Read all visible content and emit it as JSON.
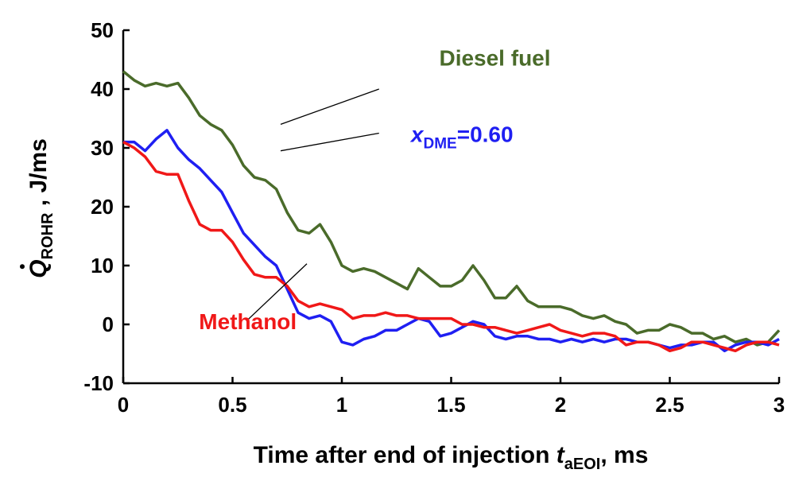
{
  "chart_data": {
    "type": "line",
    "title": "",
    "xlim": [
      0,
      3
    ],
    "ylim": [
      -10,
      50
    ],
    "x_ticks": [
      0,
      0.5,
      1,
      1.5,
      2,
      2.5,
      3
    ],
    "x_tick_labels": [
      "0",
      "0.5",
      "1",
      "1.5",
      "2",
      "2.5",
      "3"
    ],
    "y_ticks": [
      -10,
      0,
      10,
      20,
      30,
      40,
      50
    ],
    "y_tick_labels": [
      "-10",
      "0",
      "10",
      "20",
      "30",
      "40",
      "50"
    ],
    "xlabel": {
      "text": "Time after end of injection ",
      "var": "t",
      "sub": "aEOI",
      "unit": ", ms"
    },
    "ylabel": {
      "var": "Q",
      "sub": "ROHR",
      "unit": " , J/ms"
    },
    "grid": false,
    "legend": "none",
    "series": [
      {
        "name": "Diesel fuel",
        "color": "#4a6b2a",
        "points": [
          [
            0.0,
            43.0
          ],
          [
            0.05,
            41.5
          ],
          [
            0.1,
            40.5
          ],
          [
            0.15,
            41.0
          ],
          [
            0.2,
            40.5
          ],
          [
            0.25,
            41.0
          ],
          [
            0.3,
            38.5
          ],
          [
            0.35,
            35.5
          ],
          [
            0.4,
            34.0
          ],
          [
            0.45,
            33.0
          ],
          [
            0.5,
            30.5
          ],
          [
            0.55,
            27.0
          ],
          [
            0.6,
            25.0
          ],
          [
            0.65,
            24.5
          ],
          [
            0.7,
            23.0
          ],
          [
            0.75,
            19.0
          ],
          [
            0.8,
            16.0
          ],
          [
            0.85,
            15.5
          ],
          [
            0.9,
            17.0
          ],
          [
            0.95,
            14.0
          ],
          [
            1.0,
            10.0
          ],
          [
            1.05,
            9.0
          ],
          [
            1.1,
            9.5
          ],
          [
            1.15,
            9.0
          ],
          [
            1.2,
            8.0
          ],
          [
            1.25,
            7.0
          ],
          [
            1.3,
            6.0
          ],
          [
            1.35,
            9.5
          ],
          [
            1.4,
            8.0
          ],
          [
            1.45,
            6.5
          ],
          [
            1.5,
            6.5
          ],
          [
            1.55,
            7.5
          ],
          [
            1.6,
            10.0
          ],
          [
            1.65,
            7.5
          ],
          [
            1.7,
            4.5
          ],
          [
            1.75,
            4.5
          ],
          [
            1.8,
            6.5
          ],
          [
            1.85,
            4.0
          ],
          [
            1.9,
            3.0
          ],
          [
            1.95,
            3.0
          ],
          [
            2.0,
            3.0
          ],
          [
            2.05,
            2.5
          ],
          [
            2.1,
            1.5
          ],
          [
            2.15,
            1.0
          ],
          [
            2.2,
            1.5
          ],
          [
            2.25,
            0.5
          ],
          [
            2.3,
            0.0
          ],
          [
            2.35,
            -1.5
          ],
          [
            2.4,
            -1.0
          ],
          [
            2.45,
            -1.0
          ],
          [
            2.5,
            0.0
          ],
          [
            2.55,
            -0.5
          ],
          [
            2.6,
            -1.5
          ],
          [
            2.65,
            -1.5
          ],
          [
            2.7,
            -2.5
          ],
          [
            2.75,
            -2.0
          ],
          [
            2.8,
            -3.0
          ],
          [
            2.85,
            -2.5
          ],
          [
            2.9,
            -3.5
          ],
          [
            2.95,
            -3.0
          ],
          [
            3.0,
            -1.0
          ]
        ]
      },
      {
        "name": "x",
        "name_sub": "DME",
        "name_suffix": "=0.60",
        "color": "#1f1ff2",
        "points": [
          [
            0.0,
            31.0
          ],
          [
            0.05,
            31.0
          ],
          [
            0.1,
            29.5
          ],
          [
            0.15,
            31.5
          ],
          [
            0.2,
            33.0
          ],
          [
            0.25,
            30.0
          ],
          [
            0.3,
            28.0
          ],
          [
            0.35,
            26.5
          ],
          [
            0.4,
            24.5
          ],
          [
            0.45,
            22.5
          ],
          [
            0.5,
            19.0
          ],
          [
            0.55,
            15.5
          ],
          [
            0.6,
            13.5
          ],
          [
            0.65,
            11.5
          ],
          [
            0.7,
            10.0
          ],
          [
            0.75,
            6.0
          ],
          [
            0.8,
            2.0
          ],
          [
            0.85,
            1.0
          ],
          [
            0.9,
            1.5
          ],
          [
            0.95,
            0.5
          ],
          [
            1.0,
            -3.0
          ],
          [
            1.05,
            -3.5
          ],
          [
            1.1,
            -2.5
          ],
          [
            1.15,
            -2.0
          ],
          [
            1.2,
            -1.0
          ],
          [
            1.25,
            -1.0
          ],
          [
            1.3,
            0.0
          ],
          [
            1.35,
            1.0
          ],
          [
            1.4,
            0.5
          ],
          [
            1.45,
            -2.0
          ],
          [
            1.5,
            -1.5
          ],
          [
            1.55,
            -0.5
          ],
          [
            1.6,
            0.5
          ],
          [
            1.65,
            0.0
          ],
          [
            1.7,
            -2.0
          ],
          [
            1.75,
            -2.5
          ],
          [
            1.8,
            -2.0
          ],
          [
            1.85,
            -2.0
          ],
          [
            1.9,
            -2.5
          ],
          [
            1.95,
            -2.5
          ],
          [
            2.0,
            -3.0
          ],
          [
            2.05,
            -2.5
          ],
          [
            2.1,
            -3.0
          ],
          [
            2.15,
            -2.5
          ],
          [
            2.2,
            -3.0
          ],
          [
            2.25,
            -2.5
          ],
          [
            2.3,
            -2.5
          ],
          [
            2.35,
            -3.0
          ],
          [
            2.4,
            -3.0
          ],
          [
            2.45,
            -3.5
          ],
          [
            2.5,
            -4.0
          ],
          [
            2.55,
            -3.5
          ],
          [
            2.6,
            -3.5
          ],
          [
            2.65,
            -3.0
          ],
          [
            2.7,
            -3.0
          ],
          [
            2.75,
            -4.5
          ],
          [
            2.8,
            -3.5
          ],
          [
            2.85,
            -3.0
          ],
          [
            2.9,
            -3.0
          ],
          [
            2.95,
            -3.5
          ],
          [
            3.0,
            -2.5
          ]
        ]
      },
      {
        "name": "Methanol",
        "color": "#f01818",
        "points": [
          [
            0.0,
            31.0
          ],
          [
            0.05,
            30.0
          ],
          [
            0.1,
            28.5
          ],
          [
            0.15,
            26.0
          ],
          [
            0.2,
            25.5
          ],
          [
            0.25,
            25.5
          ],
          [
            0.3,
            21.0
          ],
          [
            0.35,
            17.0
          ],
          [
            0.4,
            16.0
          ],
          [
            0.45,
            16.0
          ],
          [
            0.5,
            14.0
          ],
          [
            0.55,
            11.0
          ],
          [
            0.6,
            8.5
          ],
          [
            0.65,
            8.0
          ],
          [
            0.7,
            8.0
          ],
          [
            0.75,
            6.5
          ],
          [
            0.8,
            4.0
          ],
          [
            0.85,
            3.0
          ],
          [
            0.9,
            3.5
          ],
          [
            0.95,
            3.0
          ],
          [
            1.0,
            2.5
          ],
          [
            1.05,
            1.0
          ],
          [
            1.1,
            1.5
          ],
          [
            1.15,
            1.5
          ],
          [
            1.2,
            2.0
          ],
          [
            1.25,
            1.5
          ],
          [
            1.3,
            1.5
          ],
          [
            1.35,
            1.0
          ],
          [
            1.4,
            1.0
          ],
          [
            1.45,
            1.0
          ],
          [
            1.5,
            1.0
          ],
          [
            1.55,
            0.0
          ],
          [
            1.6,
            0.0
          ],
          [
            1.65,
            -0.5
          ],
          [
            1.7,
            -0.5
          ],
          [
            1.75,
            -1.0
          ],
          [
            1.8,
            -1.5
          ],
          [
            1.85,
            -1.0
          ],
          [
            1.9,
            -0.5
          ],
          [
            1.95,
            0.0
          ],
          [
            2.0,
            -1.0
          ],
          [
            2.05,
            -1.5
          ],
          [
            2.1,
            -2.0
          ],
          [
            2.15,
            -1.5
          ],
          [
            2.2,
            -1.5
          ],
          [
            2.25,
            -2.0
          ],
          [
            2.3,
            -3.5
          ],
          [
            2.35,
            -3.0
          ],
          [
            2.4,
            -3.0
          ],
          [
            2.45,
            -3.5
          ],
          [
            2.5,
            -4.5
          ],
          [
            2.55,
            -4.0
          ],
          [
            2.6,
            -3.0
          ],
          [
            2.65,
            -3.0
          ],
          [
            2.7,
            -3.5
          ],
          [
            2.75,
            -4.0
          ],
          [
            2.8,
            -4.5
          ],
          [
            2.85,
            -3.5
          ],
          [
            2.9,
            -3.0
          ],
          [
            2.95,
            -3.0
          ],
          [
            3.0,
            -3.5
          ]
        ]
      }
    ],
    "annotations": [
      {
        "series": 0,
        "text": "Diesel fuel",
        "at": [
          1.7,
          44.0
        ],
        "pointer_from": [
          1.17,
          40.0
        ],
        "pointer_to": [
          0.72,
          34.0
        ]
      },
      {
        "series": 1,
        "text": "x",
        "sub": "DME",
        "suffix": "=0.60",
        "at": [
          1.55,
          31.0
        ],
        "pointer_from": [
          1.17,
          32.5
        ],
        "pointer_to": [
          0.72,
          29.5
        ]
      },
      {
        "series": 2,
        "text": "Methanol",
        "at": [
          0.57,
          -0.8
        ],
        "pointer_from": [
          0.57,
          0.8
        ],
        "pointer_to": [
          0.84,
          10.3
        ]
      }
    ]
  }
}
